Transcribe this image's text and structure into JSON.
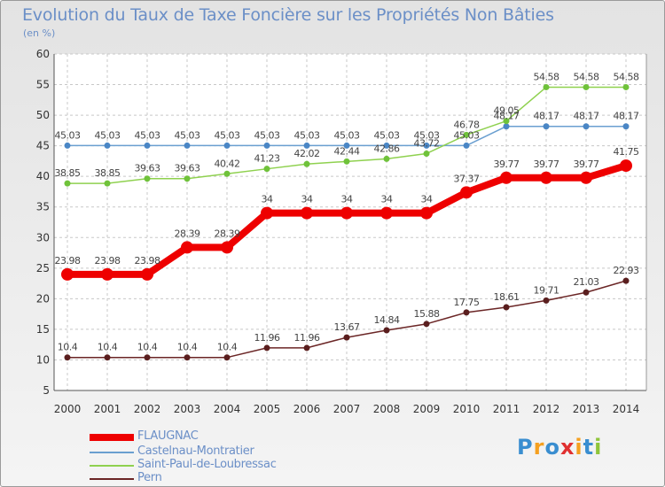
{
  "title": "Evolution du Taux de Taxe Foncière sur les Propriétés Non Bâties",
  "unit": "(en %)",
  "logo": "Proxiti",
  "chart_data": {
    "type": "line",
    "ylim": [
      5,
      60
    ],
    "yticks": [
      "5",
      "10",
      "15",
      "20",
      "25",
      "30",
      "35",
      "40",
      "45",
      "50",
      "55",
      "60"
    ],
    "x": [
      "2000",
      "2001",
      "2002",
      "2003",
      "2004",
      "2005",
      "2006",
      "2007",
      "2008",
      "2009",
      "2010",
      "2011",
      "2012",
      "2013",
      "2014"
    ],
    "grid": true,
    "legend": "bottom",
    "series": [
      {
        "name": "Castelnau-Montratier",
        "color": "#6a9fd0",
        "values": [
          45.03,
          45.03,
          45.03,
          45.03,
          45.03,
          45.03,
          45.03,
          45.03,
          45.03,
          45.03,
          45.03,
          48.17,
          48.17,
          48.17,
          48.17
        ],
        "labels": [
          "45.03",
          "45.03",
          "45.03",
          "45.03",
          "45.03",
          "45.03",
          "45.03",
          "45.03",
          "45.03",
          "45.03",
          "45.03",
          "48.17",
          "48.17",
          "48.17",
          "48.17"
        ]
      },
      {
        "name": "Saint-Paul-de-Loubressac",
        "color": "#8fd14f",
        "values": [
          38.85,
          38.85,
          39.63,
          39.63,
          40.42,
          41.23,
          42.02,
          42.44,
          42.86,
          43.72,
          46.78,
          49.05,
          54.58,
          54.58,
          54.58
        ],
        "labels": [
          "38.85",
          "38.85",
          "39.63",
          "39.63",
          "40.42",
          "41.23",
          "42.02",
          "42.44",
          "42.86",
          "43.72",
          "46.78",
          "49.05",
          "54.58",
          "54.58",
          "54.58"
        ]
      },
      {
        "name": "Pern",
        "color": "#6b2626",
        "values": [
          10.4,
          10.4,
          10.4,
          10.4,
          10.4,
          11.96,
          11.96,
          13.67,
          14.84,
          15.88,
          17.75,
          18.61,
          19.71,
          21.03,
          22.93
        ],
        "labels": [
          "10.4",
          "10.4",
          "10.4",
          "10.4",
          "10.4",
          "11.96",
          "11.96",
          "13.67",
          "14.84",
          "15.88",
          "17.75",
          "18.61",
          "19.71",
          "21.03",
          "22.93"
        ]
      },
      {
        "name": "FLAUGNAC",
        "color": "#ee0000",
        "values": [
          23.98,
          23.98,
          23.98,
          28.39,
          28.39,
          34,
          34,
          34,
          34,
          34,
          37.37,
          39.77,
          39.77,
          39.77,
          41.75
        ],
        "labels": [
          "23.98",
          "23.98",
          "23.98",
          "28.39",
          "28.39",
          "34",
          "34",
          "34",
          "34",
          "34",
          "37.37",
          "39.77",
          "39.77",
          "39.77",
          "41.75"
        ]
      }
    ]
  },
  "legend": {
    "items": [
      {
        "label": "FLAUGNAC",
        "color": "#ee0000"
      },
      {
        "label": "Castelnau-Montratier",
        "color": "#6a9fd0"
      },
      {
        "label": "Saint-Paul-de-Loubressac",
        "color": "#8fd14f"
      },
      {
        "label": "Pern",
        "color": "#6b2626"
      }
    ]
  }
}
